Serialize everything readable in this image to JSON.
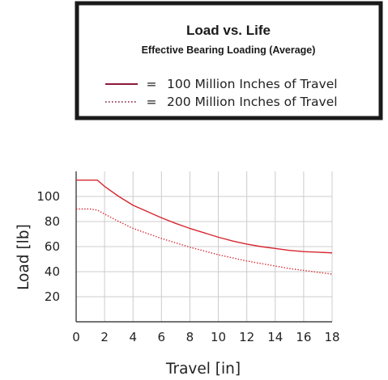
{
  "chart_data": {
    "type": "line",
    "title": "Load vs. Life",
    "subtitle": "Effective Bearing Loading (Average)",
    "xlabel": "Travel [in]",
    "ylabel": "Load [lb]",
    "xlim": [
      0,
      18
    ],
    "ylim": [
      0,
      120
    ],
    "xticks": [
      0,
      2,
      4,
      6,
      8,
      10,
      12,
      14,
      16,
      18
    ],
    "yticks": [
      20,
      40,
      60,
      80,
      100
    ],
    "grid": true,
    "legend_position": "top-center",
    "series": [
      {
        "name": "100 Million Inches of Travel",
        "style": "solid",
        "color": "#d72630",
        "x": [
          0,
          1.0,
          1.5,
          2,
          3,
          4,
          5,
          6,
          7,
          8,
          9,
          10,
          11,
          12,
          13,
          14,
          15,
          16,
          17,
          18
        ],
        "y": [
          113,
          113,
          113,
          108,
          100,
          93,
          88,
          83,
          78.5,
          74.5,
          71,
          67.5,
          64.5,
          62,
          60,
          58.5,
          57,
          56,
          55.5,
          55
        ]
      },
      {
        "name": "200 Million Inches of Travel",
        "style": "dotted",
        "color": "#d72630",
        "x": [
          0,
          1.0,
          1.5,
          2,
          3,
          4,
          5,
          6,
          7,
          8,
          9,
          10,
          11,
          12,
          13,
          14,
          15,
          16,
          17,
          18
        ],
        "y": [
          90,
          90,
          89,
          86,
          80,
          74.5,
          70.5,
          66.5,
          63,
          59.5,
          56.5,
          53.5,
          51,
          48.5,
          46.5,
          44.5,
          42.5,
          41,
          39.5,
          38
        ]
      }
    ]
  },
  "legend": {
    "title": "Load vs. Life",
    "subtitle": "Effective Bearing Loading (Average)",
    "equals": "=",
    "entries": [
      {
        "label": "100 Million Inches of Travel",
        "style": "solid",
        "color": "#8b1a3a"
      },
      {
        "label": "200 Million Inches of Travel",
        "style": "dotted",
        "color": "#8b1a3a"
      }
    ]
  },
  "colors": {
    "grid": "#cccccc",
    "axis": "#222222",
    "legend_border": "#1a1a1a"
  }
}
